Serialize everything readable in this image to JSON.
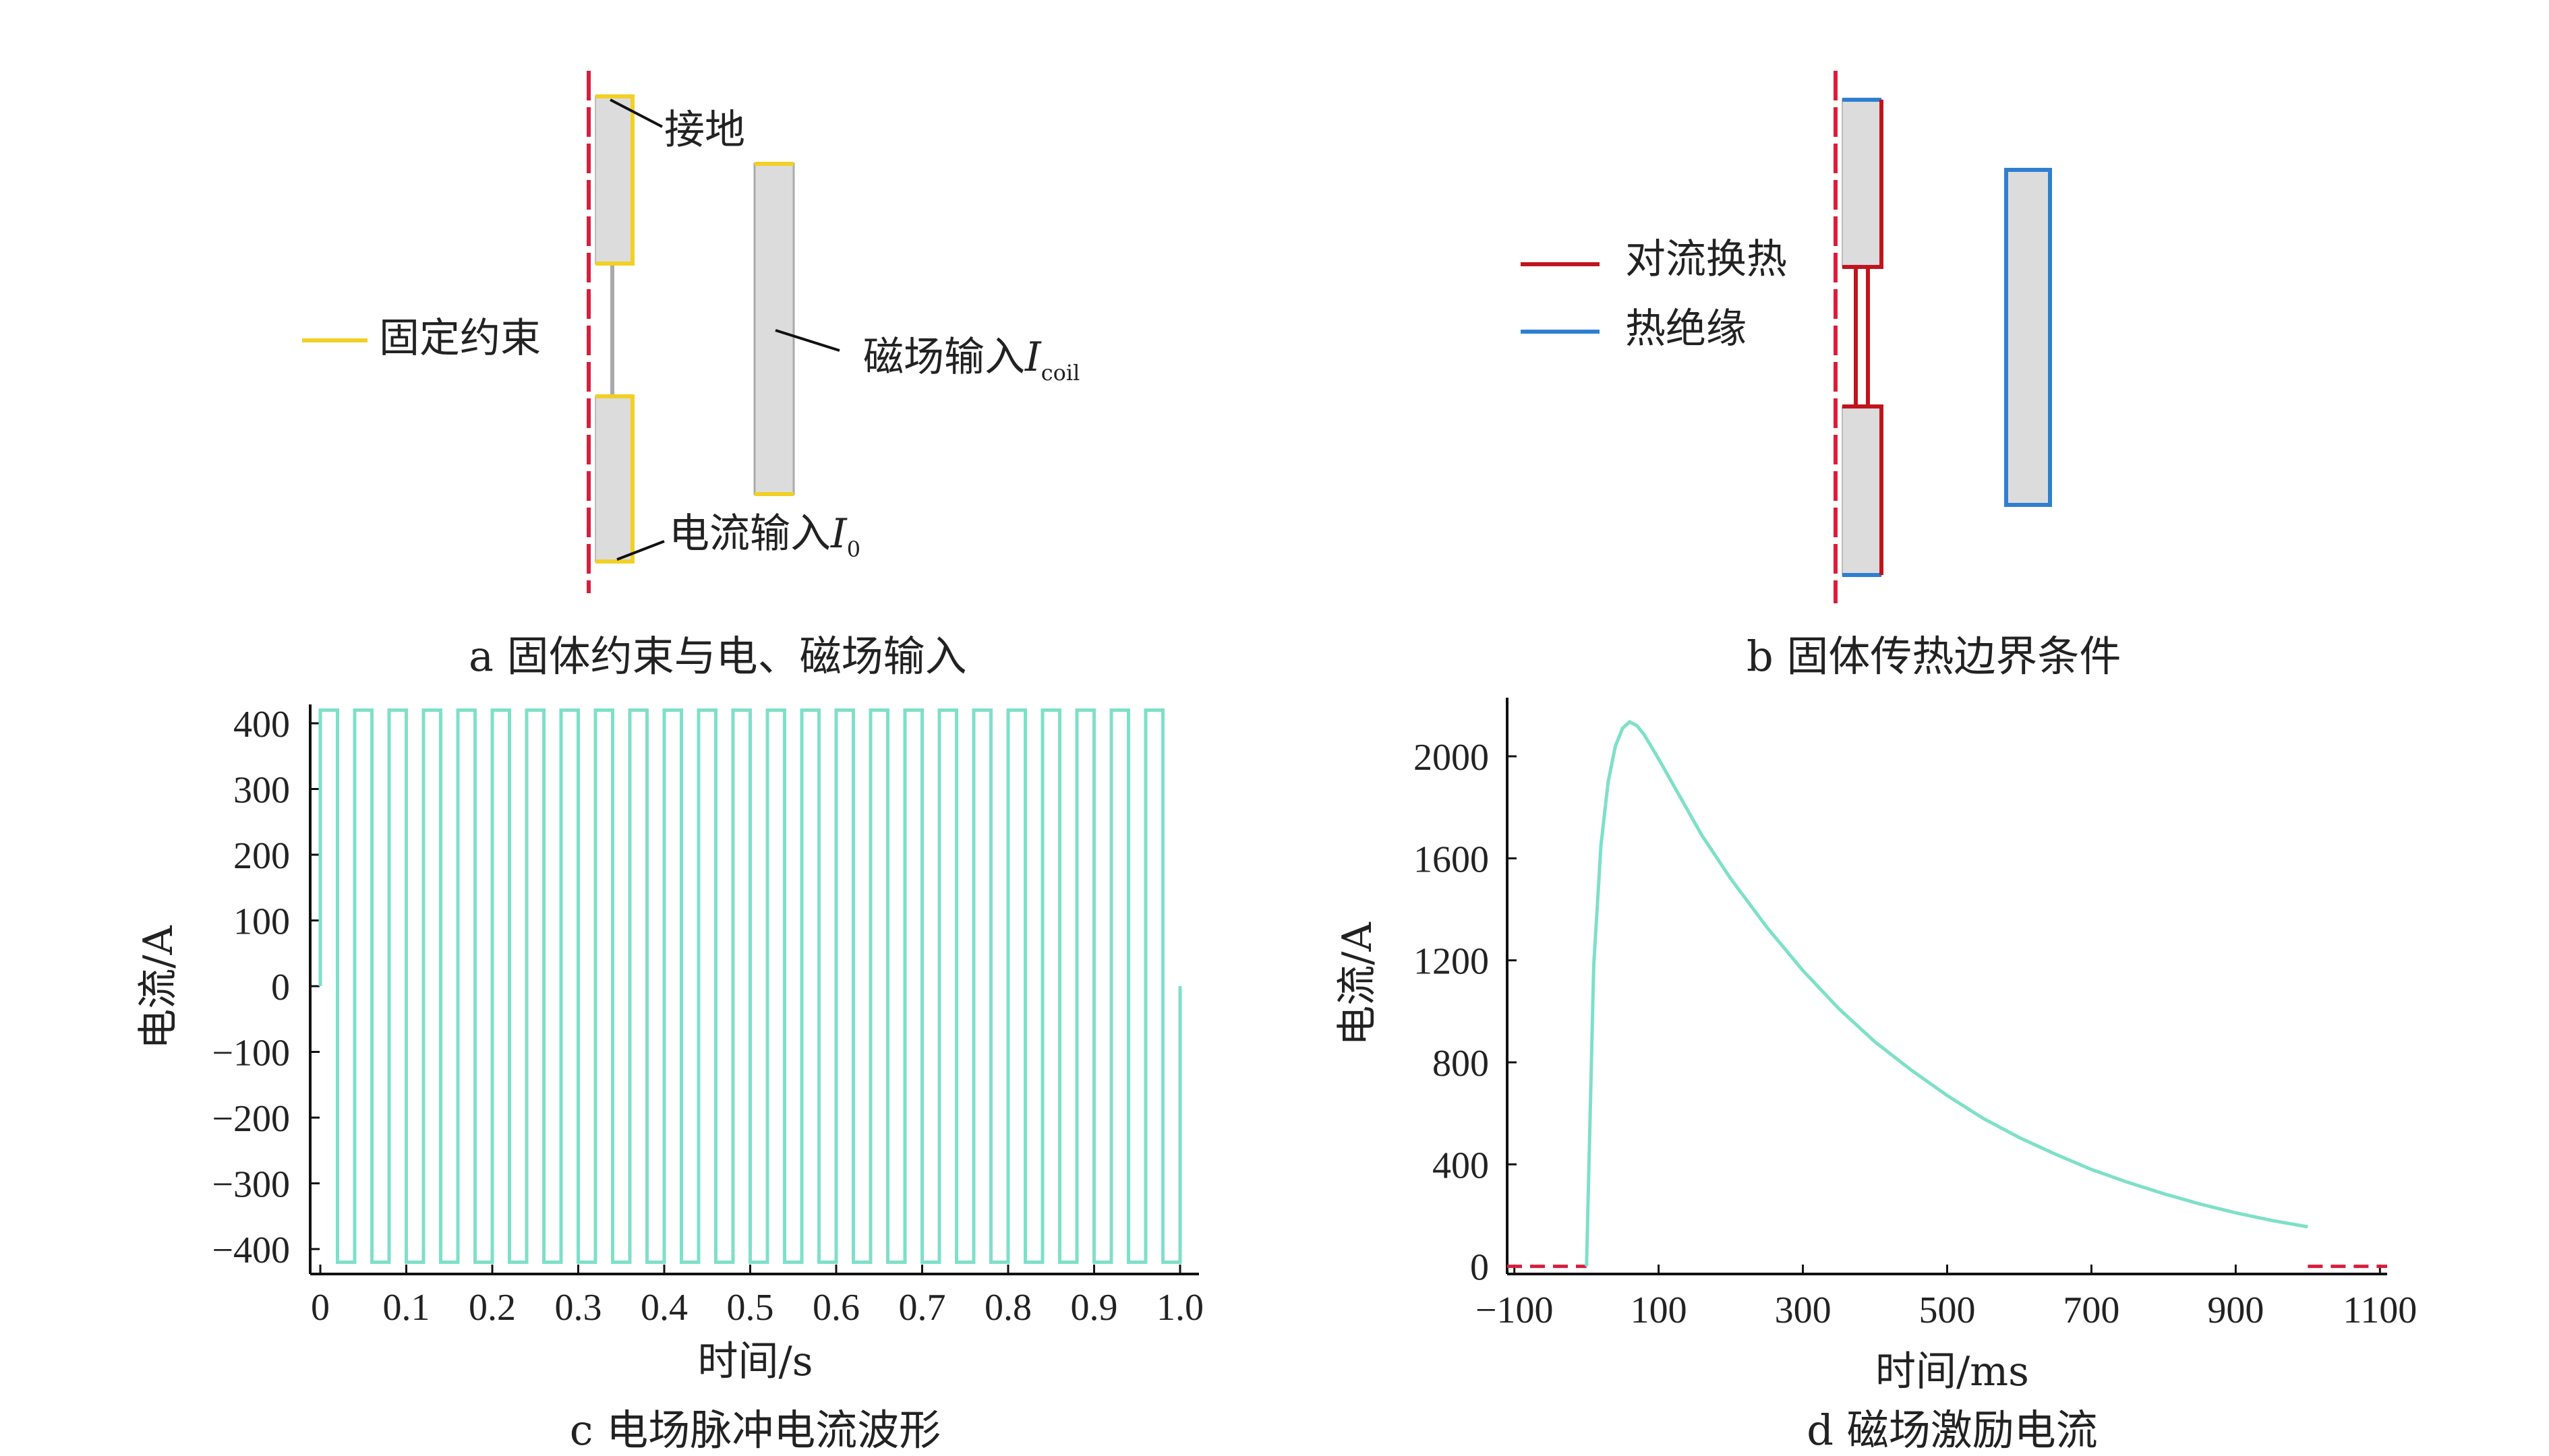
{
  "panel_a": {
    "label_ground": "接地",
    "label_fixed": "固定约束",
    "label_magnetic": "磁场输入",
    "label_magnetic_var": "I",
    "label_magnetic_sub": "coil",
    "label_current": "电流输入",
    "label_current_var": "I",
    "label_current_sub": "0",
    "caption": "a  固体约束与电、磁场输入",
    "colors": {
      "fixed": "#f2d024",
      "axis": "#d81e3c",
      "solid": "#dcdcdc"
    }
  },
  "panel_b": {
    "legend_convection": "对流换热",
    "legend_insulation": "热绝缘",
    "caption": "b  固体传热边界条件",
    "colors": {
      "convection": "#c0141e",
      "insulation": "#2f7fd0",
      "solid": "#dcdcdc"
    }
  },
  "chart_data": [
    {
      "type": "line",
      "caption": "c  电场脉冲电流波形",
      "xlabel": "时间/s",
      "ylabel": "电流/A",
      "xlim": [
        0,
        1.0
      ],
      "ylim": [
        -420,
        420
      ],
      "x_ticks": [
        "0",
        "0.1",
        "0.2",
        "0.3",
        "0.4",
        "0.5",
        "0.6",
        "0.7",
        "0.8",
        "0.9",
        "1.0"
      ],
      "x_tick_values": [
        0,
        0.1,
        0.2,
        0.3,
        0.4,
        0.5,
        0.6,
        0.7,
        0.8,
        0.9,
        1.0
      ],
      "y_ticks": [
        "400",
        "300",
        "200",
        "100",
        "0",
        "−100",
        "−200",
        "−300",
        "−400"
      ],
      "y_tick_values": [
        400,
        300,
        200,
        100,
        0,
        -100,
        -200,
        -300,
        -400
      ],
      "series": [
        {
          "amplitude": 420,
          "period": 0.04,
          "pulses": 25,
          "color": "#7ee0c8"
        }
      ]
    },
    {
      "type": "line",
      "caption": "d  磁场激励电流",
      "xlabel": "时间/ms",
      "ylabel": "电流/A",
      "xlim": [
        -110,
        1110
      ],
      "ylim": [
        -30,
        2230
      ],
      "x_ticks": [
        "−100",
        "100",
        "300",
        "500",
        "700",
        "900",
        "1100"
      ],
      "x_tick_values": [
        -100,
        100,
        300,
        500,
        700,
        900,
        1100
      ],
      "y_ticks": [
        "2000",
        "1600",
        "1200",
        "800",
        "400",
        "0"
      ],
      "y_tick_values": [
        2000,
        1600,
        1200,
        800,
        400,
        0
      ],
      "series": [
        {
          "color": "#7ee0c8",
          "x": [
            0,
            10,
            20,
            30,
            40,
            50,
            60,
            70,
            80,
            100,
            130,
            160,
            200,
            250,
            300,
            350,
            400,
            450,
            500,
            550,
            600,
            650,
            700,
            750,
            800,
            850,
            900,
            950,
            1000
          ],
          "y": [
            0,
            1180,
            1650,
            1900,
            2040,
            2110,
            2135,
            2120,
            2085,
            1990,
            1840,
            1690,
            1520,
            1330,
            1160,
            1010,
            880,
            770,
            670,
            580,
            505,
            440,
            380,
            330,
            285,
            245,
            210,
            180,
            155
          ]
        }
      ],
      "dashed_baseline": {
        "color": "#d81e3c",
        "segments": [
          [
            -110,
            0
          ],
          [
            1000,
            1110
          ]
        ]
      }
    }
  ]
}
